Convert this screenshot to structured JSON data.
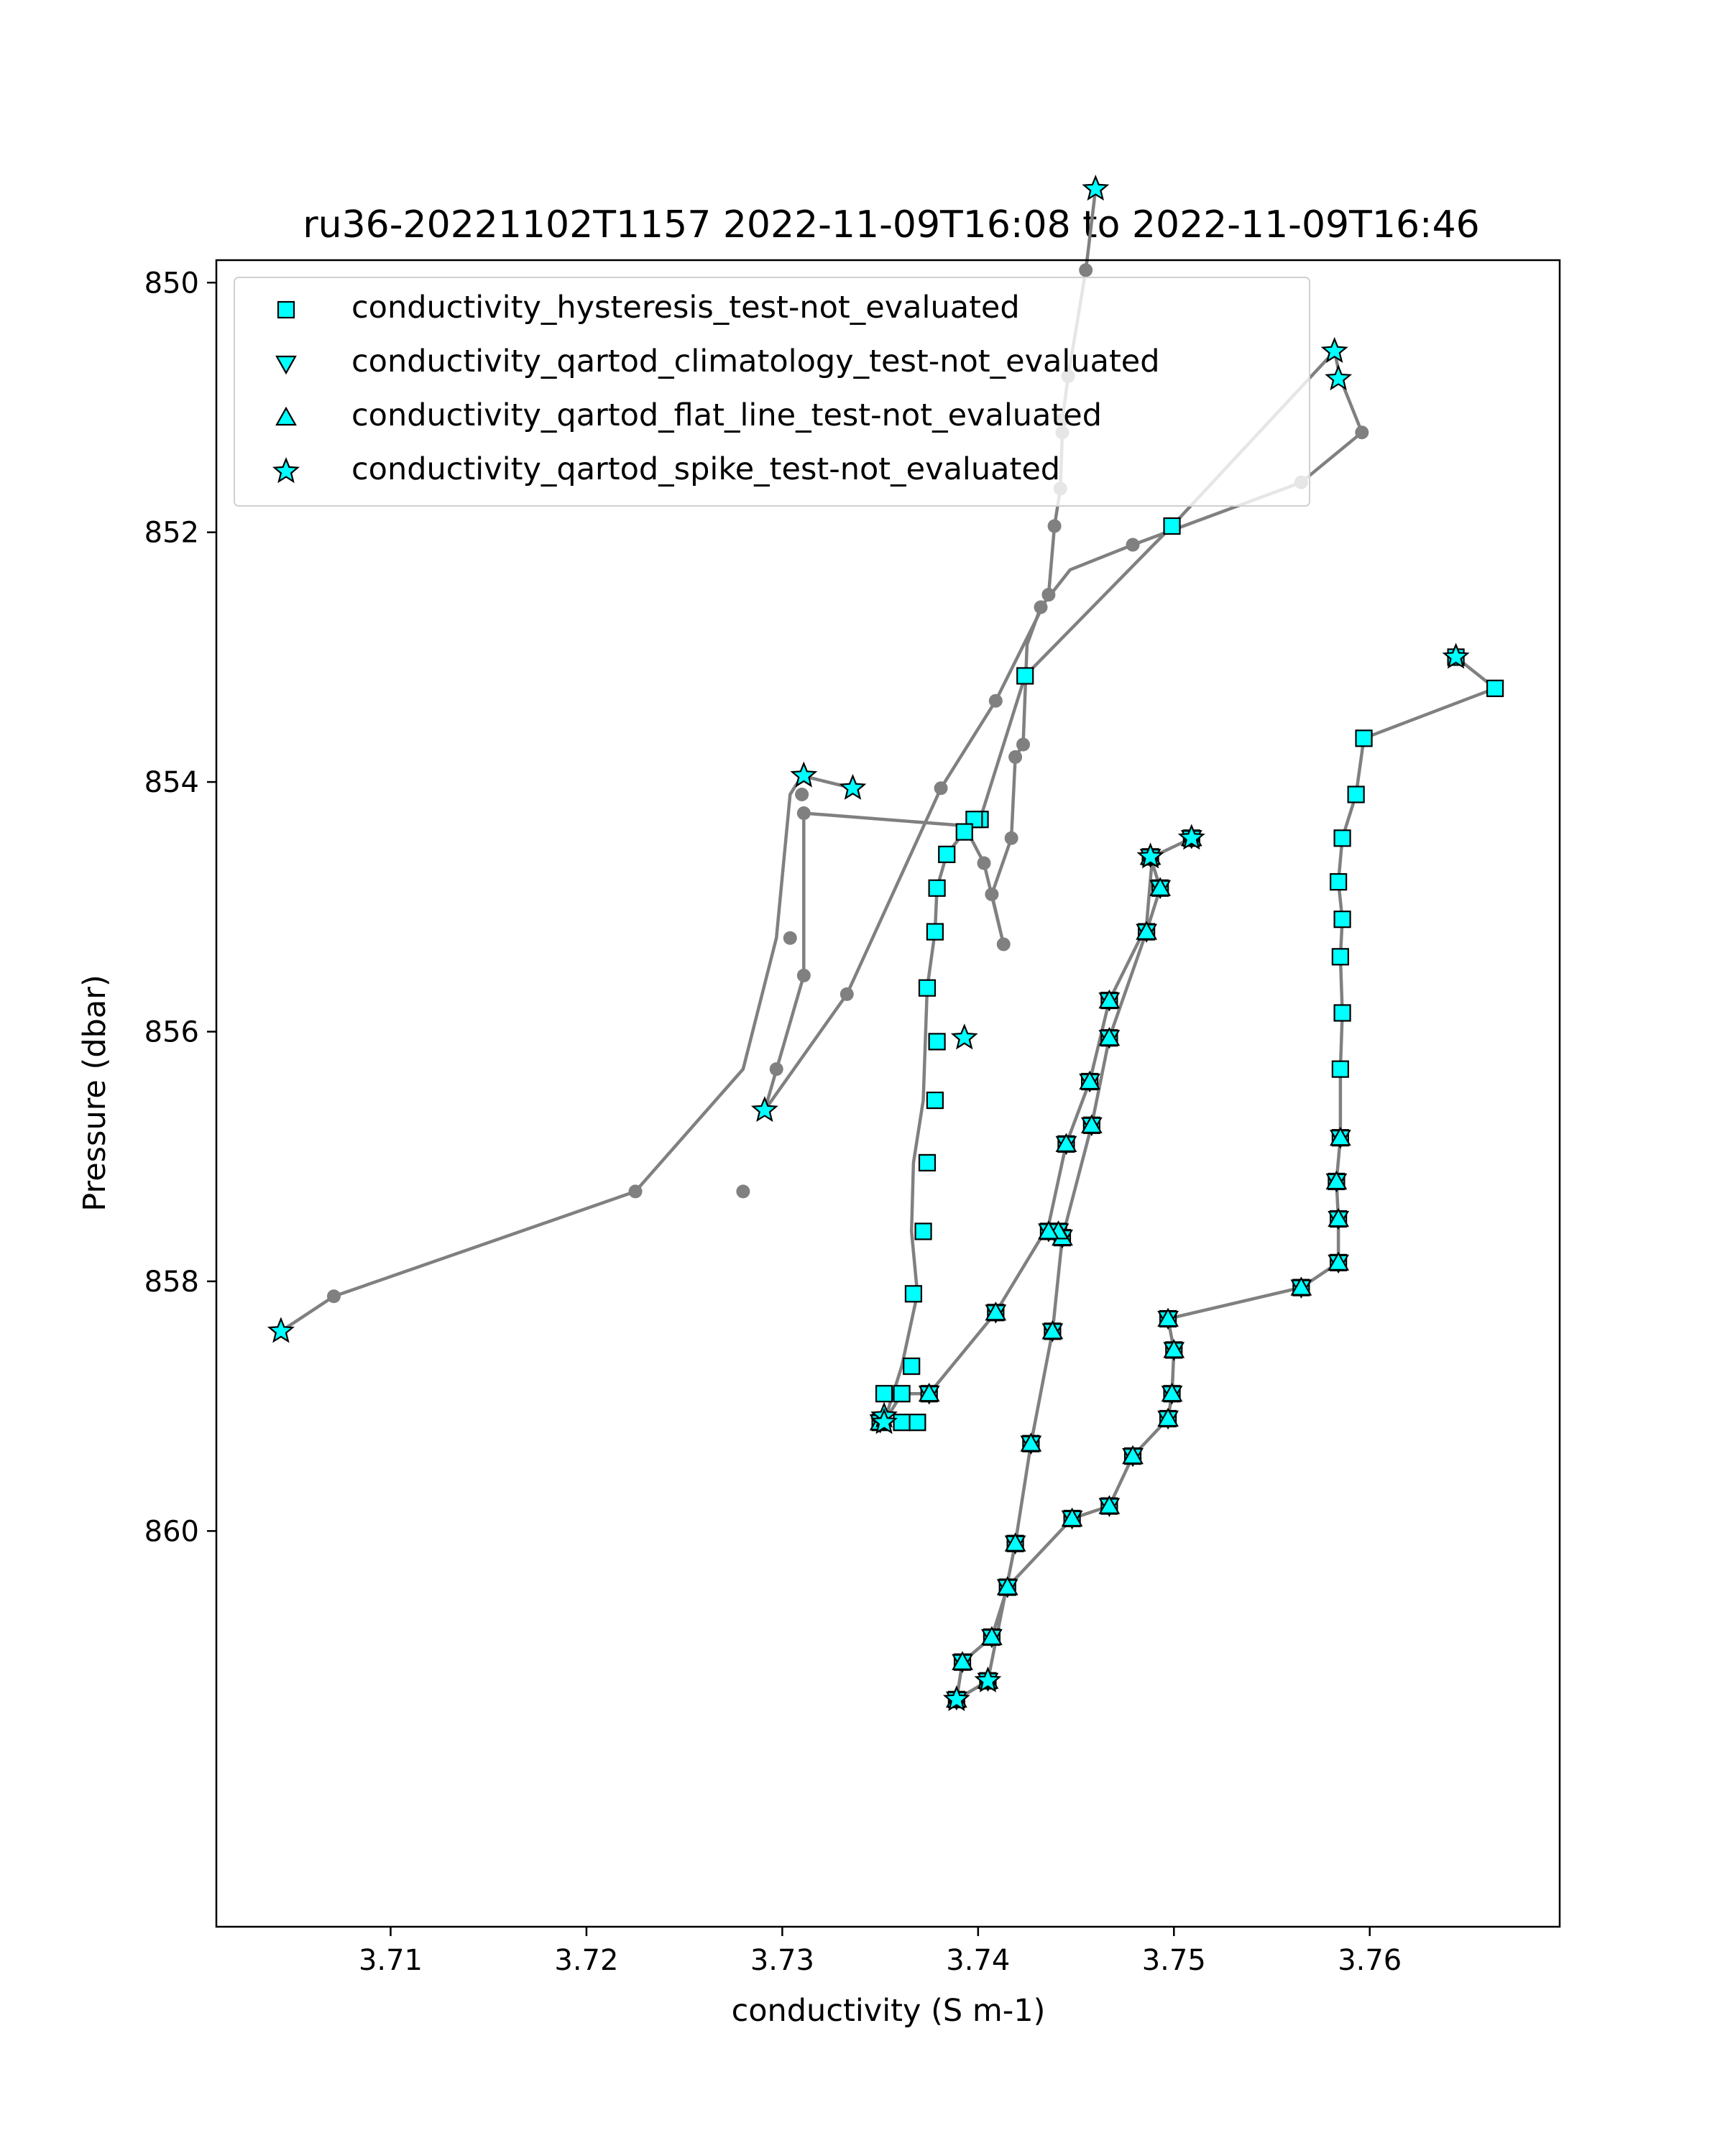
{
  "chart_data": {
    "type": "line",
    "title": "ru36-20221102T1157 2022-11-09T16:08 to 2022-11-09T16:46",
    "xlabel": "conductivity (S m-1)",
    "ylabel": "Pressure (dbar)",
    "xlim": [
      3.7011,
      3.7697
    ],
    "ylim": [
      863.17,
      849.82
    ],
    "y_inverted": true,
    "x_ticks": [
      3.71,
      3.72,
      3.73,
      3.74,
      3.75,
      3.76
    ],
    "x_tick_labels": [
      "3.71",
      "3.72",
      "3.73",
      "3.74",
      "3.75",
      "3.76"
    ],
    "y_ticks": [
      850,
      852,
      854,
      856,
      858,
      860
    ],
    "y_tick_labels": [
      "850",
      "852",
      "854",
      "856",
      "858",
      "860"
    ],
    "grid": false,
    "legend_position": "upper-left",
    "line_color": "#808080",
    "marker_color": "#00ffff",
    "legend": [
      {
        "label": "conductivity_hysteresis_test-not_evaluated",
        "marker": "square"
      },
      {
        "label": "conductivity_qartod_climatology_test-not_evaluated",
        "marker": "triangle-down"
      },
      {
        "label": "conductivity_qartod_flat_line_test-not_evaluated",
        "marker": "triangle-up"
      },
      {
        "label": "conductivity_qartod_spike_test-not_evaluated",
        "marker": "star"
      }
    ],
    "series": [
      {
        "x": [
          3.746,
          3.7455,
          3.7446,
          3.7443,
          3.7443,
          3.7442,
          3.7439,
          3.7436,
          3.7409,
          3.7381,
          3.7333,
          3.7291
        ],
        "y": [
          849.25,
          849.9,
          850.75,
          851.1,
          851.2,
          851.65,
          851.95,
          852.5,
          853.35,
          854.05,
          855.7,
          856.63
        ]
      },
      {
        "x": [
          3.7291,
          3.7311,
          3.7311,
          3.7393,
          3.7403,
          3.7413,
          3.7407,
          3.7417,
          3.7419,
          3.7423,
          3.7425,
          3.7432,
          3.7447,
          3.7479,
          3.7565,
          3.7596,
          3.7585,
          3.7582
        ],
        "y": [
          856.63,
          855.55,
          854.25,
          854.35,
          854.65,
          855.3,
          854.9,
          854.45,
          853.8,
          853.7,
          852.9,
          852.6,
          852.3,
          852.1,
          851.6,
          851.2,
          850.77,
          850.55
        ]
      },
      {
        "x": [
          3.7582,
          3.7499,
          3.7424,
          3.7401,
          3.7398,
          3.7393,
          3.7384,
          3.7379,
          3.7378,
          3.7374,
          3.7372,
          3.7367,
          3.7366,
          3.7369,
          3.7361,
          3.7352,
          3.7361,
          3.7375,
          3.7409,
          3.7436,
          3.7445,
          3.7457,
          3.7467,
          3.7486,
          3.7489,
          3.7509
        ],
        "y": [
          850.55,
          851.95,
          853.15,
          854.3,
          854.3,
          854.4,
          854.58,
          854.85,
          855.2,
          855.65,
          856.55,
          857.05,
          857.6,
          858.1,
          858.68,
          859.13,
          858.9,
          858.9,
          858.25,
          857.55,
          856.9,
          856.4,
          855.75,
          855.15,
          854.6,
          854.45
        ]
      },
      {
        "x": [
          3.7644,
          3.7664,
          3.7597,
          3.7593,
          3.7586,
          3.7584,
          3.7586,
          3.7585,
          3.7586,
          3.7585,
          3.7585,
          3.7583,
          3.7584,
          3.7584,
          3.7565,
          3.7497,
          3.75,
          3.7499,
          3.7497,
          3.7479,
          3.7467,
          3.7448,
          3.7415,
          3.7407,
          3.7392,
          3.7389,
          3.7405,
          3.7419,
          3.7427,
          3.7438,
          3.7443,
          3.7458,
          3.7467,
          3.7486,
          3.7493,
          3.7488
        ],
        "y": [
          853.0,
          853.25,
          853.65,
          854.1,
          854.45,
          854.8,
          855.1,
          855.4,
          855.85,
          856.3,
          856.85,
          857.2,
          857.5,
          857.85,
          858.05,
          858.3,
          858.55,
          858.9,
          859.1,
          859.4,
          859.8,
          859.9,
          860.45,
          860.85,
          861.05,
          861.35,
          861.2,
          860.1,
          859.3,
          858.4,
          857.65,
          856.75,
          856.05,
          855.2,
          854.85,
          854.6
        ]
      },
      {
        "x": [
          3.7336,
          3.731,
          3.7304,
          3.7297,
          3.728,
          3.7225,
          3.7071,
          3.7044
        ],
        "y": [
          854.05,
          853.95,
          854.1,
          855.25,
          856.3,
          857.28,
          858.12,
          858.4
        ]
      }
    ],
    "markers": {
      "squares": {
        "x": [
          3.7499,
          3.7424,
          3.7401,
          3.7398,
          3.7393,
          3.7384,
          3.7379,
          3.7378,
          3.7374,
          3.7379,
          3.7378,
          3.7374,
          3.7372,
          3.7367,
          3.7366,
          3.7369,
          3.7361,
          3.7352,
          3.7361,
          3.7644,
          3.7664,
          3.7597,
          3.7593,
          3.7586,
          3.7584,
          3.7586,
          3.7585,
          3.7586,
          3.7585,
          3.7585,
          3.7583,
          3.7584,
          3.7584,
          3.7565,
          3.7497,
          3.75,
          3.7499,
          3.7497,
          3.7479,
          3.7467,
          3.7448,
          3.7415,
          3.7407,
          3.7392,
          3.7389,
          3.7405,
          3.7419,
          3.7427,
          3.7438,
          3.7443,
          3.7458,
          3.7467,
          3.7486,
          3.7493,
          3.7488,
          3.7509,
          3.7441,
          3.7445,
          3.7457,
          3.7467,
          3.7436,
          3.7409,
          3.7375,
          3.735
        ],
        "y": [
          851.95,
          853.15,
          854.3,
          854.3,
          854.4,
          854.58,
          854.85,
          855.2,
          855.65,
          856.08,
          856.55,
          857.05,
          857.6,
          858.1,
          858.68,
          859.13,
          858.9,
          858.9,
          859.13,
          853.0,
          853.25,
          853.65,
          854.1,
          854.45,
          854.8,
          855.1,
          855.4,
          855.85,
          856.3,
          856.85,
          857.2,
          857.5,
          857.85,
          858.05,
          858.3,
          858.55,
          858.9,
          859.1,
          859.4,
          859.8,
          859.9,
          860.45,
          860.85,
          861.05,
          861.35,
          861.2,
          860.1,
          859.3,
          858.4,
          857.65,
          856.75,
          856.05,
          855.2,
          854.85,
          854.6,
          854.45,
          857.6,
          856.9,
          856.4,
          855.75,
          857.6,
          858.25,
          858.9,
          859.13
        ]
      },
      "triangles_down": {
        "x": [
          3.7585,
          3.7583,
          3.7584,
          3.7584,
          3.7565,
          3.7497,
          3.75,
          3.7499,
          3.7497,
          3.7479,
          3.7467,
          3.7448,
          3.7415,
          3.7407,
          3.7392,
          3.7389,
          3.7405,
          3.7419,
          3.7427,
          3.7438,
          3.7443,
          3.7458,
          3.7467,
          3.7486,
          3.7493,
          3.7488,
          3.7509,
          3.7441,
          3.7445,
          3.7457,
          3.7467,
          3.7436,
          3.7409,
          3.7375,
          3.735
        ],
        "y": [
          856.85,
          857.2,
          857.5,
          857.85,
          858.05,
          858.3,
          858.55,
          858.9,
          859.1,
          859.4,
          859.8,
          859.9,
          860.45,
          860.85,
          861.05,
          861.35,
          861.2,
          860.1,
          859.3,
          858.4,
          857.65,
          856.75,
          856.05,
          855.2,
          854.85,
          854.6,
          854.45,
          857.6,
          856.9,
          856.4,
          855.75,
          857.6,
          858.25,
          858.9,
          859.13
        ]
      },
      "stars": {
        "x": [
          3.746,
          3.7582,
          3.7584,
          3.7644,
          3.7311,
          3.7336,
          3.7393,
          3.7291,
          3.7488,
          3.7509,
          3.7044,
          3.7352,
          3.7352,
          3.7389,
          3.7405
        ],
        "y": [
          849.25,
          850.55,
          850.77,
          853.0,
          853.95,
          854.05,
          856.05,
          856.63,
          854.6,
          854.45,
          858.4,
          859.08,
          859.13,
          861.35,
          861.2
        ]
      },
      "dots": {
        "x": [
          3.7455,
          3.7446,
          3.7443,
          3.7443,
          3.7442,
          3.7439,
          3.7436,
          3.7409,
          3.7381,
          3.7333,
          3.7311,
          3.7311,
          3.7403,
          3.7413,
          3.7407,
          3.7417,
          3.7419,
          3.7423,
          3.7432,
          3.7479,
          3.7565,
          3.7596,
          3.731,
          3.7304,
          3.7297,
          3.728,
          3.7225,
          3.7071
        ],
        "y": [
          849.9,
          850.75,
          851.1,
          851.2,
          851.65,
          851.95,
          852.5,
          853.35,
          854.05,
          855.7,
          855.55,
          854.25,
          854.65,
          855.3,
          854.9,
          854.45,
          853.8,
          853.7,
          852.6,
          852.1,
          851.6,
          851.2,
          854.1,
          855.25,
          856.3,
          857.28,
          857.28,
          858.12
        ]
      }
    }
  }
}
